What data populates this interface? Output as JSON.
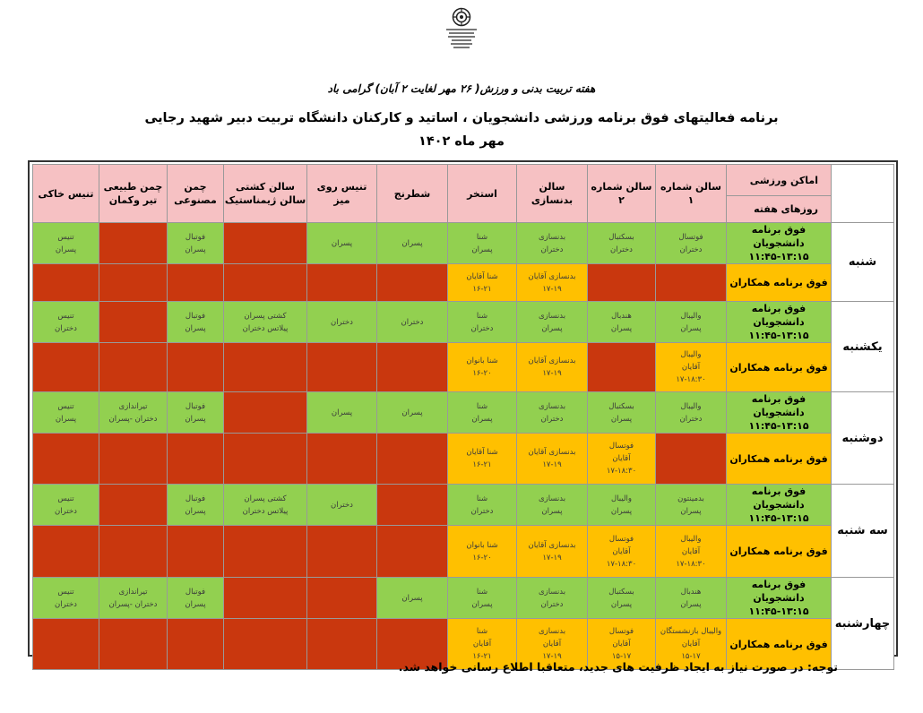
{
  "header": {
    "week_line": "هفته تربیت بدنی و ورزش( ۲۶ مهر لغایت ۲ آبان) گرامی باد",
    "title": "برنامه فعالیتهای فوق برنامه ورزشی دانشجویان ، اساتید و کارکنان دانشگاه تربیت دبیر شهید رجایی",
    "month": "مهر ماه ۱۴۰۲"
  },
  "table": {
    "header_places": "اماکن ورزشی",
    "header_days": "روزهای هفته",
    "columns": [
      [
        "سالن شماره ۱"
      ],
      [
        "سالن شماره ۲"
      ],
      [
        "سالن بدنسازی"
      ],
      [
        "استخر"
      ],
      [
        "شطرنج"
      ],
      [
        "تنیس روی میز"
      ],
      [
        "سالن کشتی",
        "سالن ژیمناستیک"
      ],
      [
        "چمن",
        "مصنوعی"
      ],
      [
        "چمن طبیعی",
        "تیر وکمان"
      ],
      [
        "تنیس خاکی"
      ]
    ],
    "days": [
      {
        "name": "شنبه",
        "student": {
          "label": "فوق برنامه دانشجویان",
          "time": "۱۱:۴۵-۱۳:۱۵",
          "cells": [
            {
              "s": "g",
              "t": [
                "فوتسال",
                "دختران"
              ]
            },
            {
              "s": "g",
              "t": [
                "بسکتبال",
                "دختران"
              ]
            },
            {
              "s": "g",
              "t": [
                "بدنسازی",
                "دختران"
              ]
            },
            {
              "s": "g",
              "t": [
                "شنا",
                "پسران"
              ]
            },
            {
              "s": "g",
              "t": [
                "پسران"
              ]
            },
            {
              "s": "g",
              "t": [
                "پسران"
              ]
            },
            {
              "s": "r",
              "t": []
            },
            {
              "s": "g",
              "t": [
                "فوتبال",
                "پسران"
              ]
            },
            {
              "s": "r",
              "t": []
            },
            {
              "s": "g",
              "t": [
                "تنیس",
                "پسران"
              ]
            }
          ]
        },
        "staff": {
          "label": "فوق برنامه همکاران",
          "cells": [
            {
              "s": "r",
              "t": []
            },
            {
              "s": "r",
              "t": []
            },
            {
              "s": "y",
              "t": [
                "بدنسازی آقایان",
                "۱۷-۱۹"
              ]
            },
            {
              "s": "y",
              "t": [
                "شنا آقایان",
                "۱۶-۲۱"
              ]
            },
            {
              "s": "r",
              "t": []
            },
            {
              "s": "r",
              "t": []
            },
            {
              "s": "r",
              "t": []
            },
            {
              "s": "r",
              "t": []
            },
            {
              "s": "r",
              "t": []
            },
            {
              "s": "r",
              "t": []
            }
          ]
        }
      },
      {
        "name": "یکشنبه",
        "student": {
          "label": "فوق برنامه دانشجویان",
          "time": "۱۱:۴۵-۱۳:۱۵",
          "cells": [
            {
              "s": "g",
              "t": [
                "والیبال",
                "پسران"
              ]
            },
            {
              "s": "g",
              "t": [
                "هندبال",
                "پسران"
              ]
            },
            {
              "s": "g",
              "t": [
                "بدنسازی",
                "پسران"
              ]
            },
            {
              "s": "g",
              "t": [
                "شنا",
                "دختران"
              ]
            },
            {
              "s": "g",
              "t": [
                "دختران"
              ]
            },
            {
              "s": "g",
              "t": [
                "دختران"
              ]
            },
            {
              "s": "g",
              "t": [
                "کشتی پسران",
                "پیلاتس دختران"
              ]
            },
            {
              "s": "g",
              "t": [
                "فوتبال",
                "پسران"
              ]
            },
            {
              "s": "r",
              "t": []
            },
            {
              "s": "g",
              "t": [
                "تنیس",
                "دختران"
              ]
            }
          ]
        },
        "staff": {
          "label": "فوق برنامه همکاران",
          "cells": [
            {
              "s": "y",
              "t": [
                "والیبال",
                "آقایان",
                "۱۷-۱۸:۳۰"
              ]
            },
            {
              "s": "r",
              "t": []
            },
            {
              "s": "y",
              "t": [
                "بدنسازی آقایان",
                "۱۷-۱۹"
              ]
            },
            {
              "s": "y",
              "t": [
                "شنا بانوان",
                "۱۶-۲۰"
              ]
            },
            {
              "s": "r",
              "t": []
            },
            {
              "s": "r",
              "t": []
            },
            {
              "s": "r",
              "t": []
            },
            {
              "s": "r",
              "t": []
            },
            {
              "s": "r",
              "t": []
            },
            {
              "s": "r",
              "t": []
            }
          ]
        }
      },
      {
        "name": "دوشنبه",
        "student": {
          "label": "فوق برنامه دانشجویان",
          "time": "۱۱:۴۵-۱۳:۱۵",
          "cells": [
            {
              "s": "g",
              "t": [
                "والیبال",
                "دختران"
              ]
            },
            {
              "s": "g",
              "t": [
                "بسکتبال",
                "پسران"
              ]
            },
            {
              "s": "g",
              "t": [
                "بدنسازی",
                "دختران"
              ]
            },
            {
              "s": "g",
              "t": [
                "شنا",
                "پسران"
              ]
            },
            {
              "s": "g",
              "t": [
                "پسران"
              ]
            },
            {
              "s": "g",
              "t": [
                "پسران"
              ]
            },
            {
              "s": "r",
              "t": []
            },
            {
              "s": "g",
              "t": [
                "فوتبال",
                "پسران"
              ]
            },
            {
              "s": "g",
              "t": [
                "تیراندازی",
                "دختران -پسران"
              ]
            },
            {
              "s": "g",
              "t": [
                "تنیس",
                "پسران"
              ]
            }
          ]
        },
        "staff": {
          "label": "فوق برنامه همکاران",
          "cells": [
            {
              "s": "r",
              "t": []
            },
            {
              "s": "y",
              "t": [
                "فوتسال",
                "آقایان",
                "۱۷-۱۸:۳۰"
              ]
            },
            {
              "s": "y",
              "t": [
                "بدنسازی آقایان",
                "۱۷-۱۹"
              ]
            },
            {
              "s": "y",
              "t": [
                "شنا آقایان",
                "۱۶-۲۱"
              ]
            },
            {
              "s": "r",
              "t": []
            },
            {
              "s": "r",
              "t": []
            },
            {
              "s": "r",
              "t": []
            },
            {
              "s": "r",
              "t": []
            },
            {
              "s": "r",
              "t": []
            },
            {
              "s": "r",
              "t": []
            }
          ]
        }
      },
      {
        "name": "سه شنبه",
        "student": {
          "label": "فوق برنامه دانشجویان",
          "time": "۱۱:۴۵-۱۳:۱۵",
          "cells": [
            {
              "s": "g",
              "t": [
                "بدمینتون",
                "پسران"
              ]
            },
            {
              "s": "g",
              "t": [
                "والیبال",
                "پسران"
              ]
            },
            {
              "s": "g",
              "t": [
                "بدنسازی",
                "پسران"
              ]
            },
            {
              "s": "g",
              "t": [
                "شنا",
                "دختران"
              ]
            },
            {
              "s": "r",
              "t": []
            },
            {
              "s": "g",
              "t": [
                "دختران"
              ]
            },
            {
              "s": "g",
              "t": [
                "کشتی پسران",
                "پیلاتس دختران"
              ]
            },
            {
              "s": "g",
              "t": [
                "فوتبال",
                "پسران"
              ]
            },
            {
              "s": "r",
              "t": []
            },
            {
              "s": "g",
              "t": [
                "تنیس",
                "دختران"
              ]
            }
          ]
        },
        "staff": {
          "label": "فوق برنامه همکاران",
          "cells": [
            {
              "s": "y",
              "t": [
                "والیبال",
                "آقایان",
                "۱۷-۱۸:۳۰"
              ]
            },
            {
              "s": "y",
              "t": [
                "فوتسال",
                "آقایان",
                "۱۷-۱۸:۳۰"
              ]
            },
            {
              "s": "y",
              "t": [
                "بدنسازی آقایان",
                "۱۷-۱۹"
              ]
            },
            {
              "s": "y",
              "t": [
                "شنا بانوان",
                "۱۶-۲۰"
              ]
            },
            {
              "s": "r",
              "t": []
            },
            {
              "s": "r",
              "t": []
            },
            {
              "s": "r",
              "t": []
            },
            {
              "s": "r",
              "t": []
            },
            {
              "s": "r",
              "t": []
            },
            {
              "s": "r",
              "t": []
            }
          ]
        }
      },
      {
        "name": "چهارشنبه",
        "student": {
          "label": "فوق برنامه دانشجویان",
          "time": "۱۱:۴۵-۱۳:۱۵",
          "cells": [
            {
              "s": "g",
              "t": [
                "هندبال",
                "پسران"
              ]
            },
            {
              "s": "g",
              "t": [
                "بسکتبال",
                "پسران"
              ]
            },
            {
              "s": "g",
              "t": [
                "بدنسازی",
                "دختران"
              ]
            },
            {
              "s": "g",
              "t": [
                "شنا",
                "پسران"
              ]
            },
            {
              "s": "g",
              "t": [
                "پسران"
              ]
            },
            {
              "s": "r",
              "t": []
            },
            {
              "s": "r",
              "t": []
            },
            {
              "s": "g",
              "t": [
                "فوتبال",
                "پسران"
              ]
            },
            {
              "s": "g",
              "t": [
                "تیراندازی",
                "دختران -پسران"
              ]
            },
            {
              "s": "g",
              "t": [
                "تنیس",
                "دختران"
              ]
            }
          ]
        },
        "staff": {
          "label": "فوق برنامه همکاران",
          "cells": [
            {
              "s": "y",
              "t": [
                "والیبال بازنشستگان",
                "آقایان",
                "۱۵-۱۷"
              ]
            },
            {
              "s": "y",
              "t": [
                "فوتسال",
                "آقایان",
                "۱۵-۱۷"
              ]
            },
            {
              "s": "y",
              "t": [
                "بدنسازی",
                "آقایان",
                "۱۷-۱۹"
              ]
            },
            {
              "s": "y",
              "t": [
                "شنا",
                "آقایان",
                "۱۶-۲۱"
              ]
            },
            {
              "s": "r",
              "t": []
            },
            {
              "s": "r",
              "t": []
            },
            {
              "s": "r",
              "t": []
            },
            {
              "s": "r",
              "t": []
            },
            {
              "s": "r",
              "t": []
            },
            {
              "s": "r",
              "t": []
            }
          ]
        }
      }
    ]
  },
  "footer": {
    "note": "توجه: در صورت نیاز به ایجاد ظرفیت های جدید، متعاقبا اطلاع رسانی خواهد شد."
  },
  "colors": {
    "header_bg": "#f6c1c3",
    "green": "#92d050",
    "yellow": "#ffc000",
    "red": "#c9370e"
  }
}
